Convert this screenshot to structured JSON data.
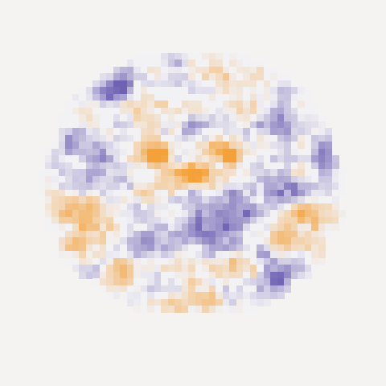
{
  "image": {
    "subject": "brain-slice-heatmap",
    "view": "coronal",
    "colors": {
      "background": "#f4f3f2",
      "neutral": "#f2f1f4",
      "negative_max": "#6f62b3",
      "positive_max": "#f4a13a"
    }
  }
}
